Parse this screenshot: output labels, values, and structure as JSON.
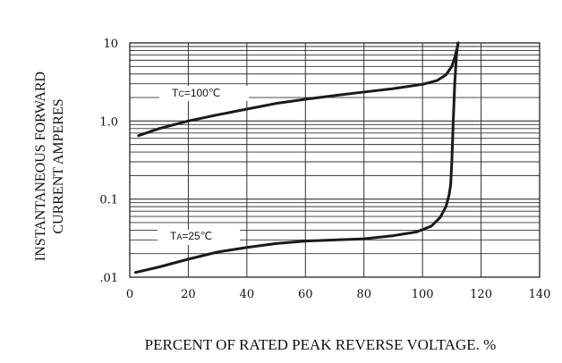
{
  "chart_data": {
    "type": "line",
    "ylabel_line1": "INSTANTANEOUS FORWARD",
    "ylabel_line2": "CURRENT AMPERES",
    "xlabel": "PERCENT OF RATED PEAK REVERSE VOLTAGE. %",
    "xlim": [
      0,
      140
    ],
    "ylim": [
      0.01,
      10
    ],
    "y_scale": "log",
    "x_ticks": [
      0,
      20,
      40,
      60,
      80,
      100,
      120,
      140
    ],
    "x_tick_labels": [
      "0",
      "20",
      "40",
      "60",
      "80",
      "100",
      "120",
      "140"
    ],
    "y_ticks": [
      0.01,
      0.1,
      1,
      10
    ],
    "y_tick_labels": [
      ".01",
      "0.1",
      "1.0",
      "10"
    ],
    "grid": "vertical major lines at x ticks; horizontal lines at log minor divisions",
    "series": [
      {
        "label_main": "T",
        "label_sub": "C",
        "label_rest": "=100℃",
        "color": "#1a1a1a",
        "points": [
          [
            3,
            0.65
          ],
          [
            10,
            0.8
          ],
          [
            20,
            1.0
          ],
          [
            30,
            1.2
          ],
          [
            40,
            1.42
          ],
          [
            50,
            1.68
          ],
          [
            60,
            1.9
          ],
          [
            70,
            2.12
          ],
          [
            80,
            2.35
          ],
          [
            90,
            2.6
          ],
          [
            100,
            2.95
          ],
          [
            105,
            3.3
          ],
          [
            108,
            3.9
          ],
          [
            110,
            5.0
          ],
          [
            111,
            6.5
          ],
          [
            111.8,
            8.5
          ],
          [
            112.2,
            10
          ]
        ]
      },
      {
        "label_main": "T",
        "label_sub": "A",
        "label_rest": "=25℃",
        "color": "#1a1a1a",
        "points": [
          [
            2,
            0.0115
          ],
          [
            10,
            0.0135
          ],
          [
            20,
            0.017
          ],
          [
            30,
            0.021
          ],
          [
            40,
            0.024
          ],
          [
            50,
            0.027
          ],
          [
            60,
            0.029
          ],
          [
            70,
            0.03
          ],
          [
            80,
            0.031
          ],
          [
            90,
            0.034
          ],
          [
            98,
            0.038
          ],
          [
            103,
            0.045
          ],
          [
            106,
            0.058
          ],
          [
            108,
            0.08
          ],
          [
            109,
            0.11
          ],
          [
            109.6,
            0.15
          ],
          [
            110,
            0.3
          ],
          [
            110.5,
            1.0
          ],
          [
            111,
            3.0
          ],
          [
            111.6,
            7.0
          ],
          [
            112.1,
            10
          ]
        ]
      }
    ]
  }
}
